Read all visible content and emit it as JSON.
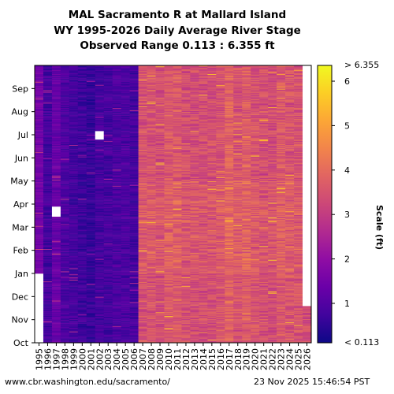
{
  "header": {
    "title_line1": "MAL Sacramento R at Mallard Island",
    "title_line2": "WY 1995-2026 Daily Average River Stage",
    "title_line3": "Observed Range 0.113 : 6.355 ft"
  },
  "footer": {
    "url": "www.cbr.washington.edu/sacramento/",
    "timestamp": "23 Nov 2025 15:46:54 PST"
  },
  "colorbar": {
    "label": "Scale (ft)",
    "max_label": "> 6.355",
    "min_label": "< 0.113",
    "ticks": [
      "1",
      "2",
      "3",
      "4",
      "5",
      "6"
    ],
    "tick_values": [
      1,
      2,
      3,
      4,
      5,
      6
    ],
    "range": [
      0.113,
      6.355
    ],
    "colormap": "plasma"
  },
  "chart_data": {
    "type": "heatmap",
    "title": "MAL Sacramento R at Mallard Island WY 1995-2026 Daily Average River Stage",
    "xlabel": "",
    "ylabel": "",
    "x_categories": [
      "1995",
      "1996",
      "1997",
      "1998",
      "1999",
      "2000",
      "2001",
      "2002",
      "2003",
      "2004",
      "2005",
      "2006",
      "2007",
      "2008",
      "2009",
      "2010",
      "2011",
      "2012",
      "2013",
      "2014",
      "2015",
      "2016",
      "2017",
      "2018",
      "2019",
      "2020",
      "2021",
      "2022",
      "2023",
      "2024",
      "2025",
      "2026"
    ],
    "y_categories": [
      "Oct",
      "Nov",
      "Dec",
      "Jan",
      "Feb",
      "Mar",
      "Apr",
      "May",
      "Jun",
      "Jul",
      "Aug",
      "Sep"
    ],
    "units": "ft",
    "value_range": [
      0.113,
      6.355
    ],
    "approx_typical_stage_by_water_year": [
      1.5,
      0.8,
      1.3,
      0.9,
      0.8,
      0.7,
      0.6,
      0.8,
      0.8,
      0.9,
      0.9,
      0.8,
      3.5,
      3.5,
      3.4,
      3.6,
      3.6,
      3.4,
      3.4,
      3.4,
      3.4,
      3.5,
      3.8,
      3.5,
      3.7,
      3.5,
      3.4,
      3.4,
      3.6,
      3.5,
      3.5,
      3.3
    ],
    "missing_regions": [
      {
        "water_year": "1995",
        "months": "Oct-Jan (partial)"
      },
      {
        "water_year": "1997",
        "months": "Apr (partial)"
      },
      {
        "water_year": "2002",
        "months": "Jul (partial)"
      },
      {
        "water_year": "2026",
        "months": "Dec-Sep"
      }
    ],
    "grid": false
  }
}
